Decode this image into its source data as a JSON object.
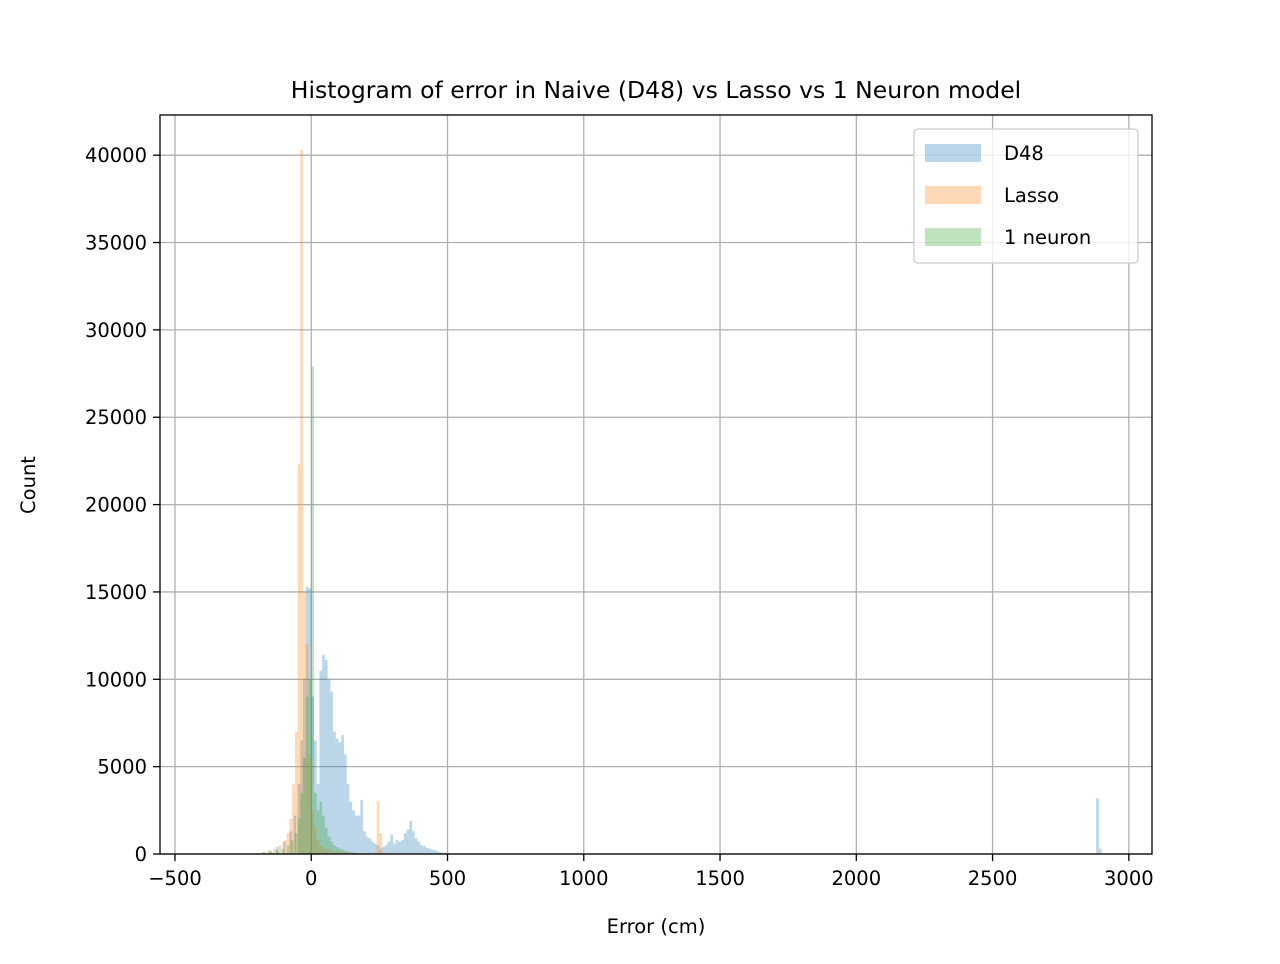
{
  "chart_data": {
    "type": "histogram",
    "title": "Histogram of error in Naive (D48) vs Lasso vs 1 Neuron model",
    "xlabel": "Error (cm)",
    "ylabel": "Count",
    "xlim": [
      -555,
      3085
    ],
    "ylim": [
      0,
      42300
    ],
    "x_ticks": [
      -500,
      0,
      500,
      1000,
      1500,
      2000,
      2500,
      3000
    ],
    "x_tick_labels": [
      "−500",
      "0",
      "500",
      "1000",
      "1500",
      "2000",
      "2500",
      "3000"
    ],
    "y_ticks": [
      0,
      5000,
      10000,
      15000,
      20000,
      25000,
      30000,
      35000,
      40000
    ],
    "y_tick_labels": [
      "0",
      "5000",
      "10000",
      "15000",
      "20000",
      "25000",
      "30000",
      "35000",
      "40000"
    ],
    "grid": true,
    "legend_position": "top-right",
    "series": [
      {
        "name": "D48",
        "color": "#1f77b4",
        "alpha": 0.3,
        "bins": [
          [
            -175,
            100
          ],
          [
            -150,
            200
          ],
          [
            -125,
            400
          ],
          [
            -100,
            700
          ],
          [
            -75,
            1300
          ],
          [
            -60,
            2200
          ],
          [
            -45,
            4000
          ],
          [
            -35,
            6500
          ],
          [
            -25,
            10000
          ],
          [
            -15,
            15300
          ],
          [
            -5,
            15200
          ],
          [
            5,
            9000
          ],
          [
            15,
            6500
          ],
          [
            25,
            4000
          ],
          [
            35,
            10500
          ],
          [
            45,
            11400
          ],
          [
            55,
            11100
          ],
          [
            65,
            10000
          ],
          [
            75,
            9300
          ],
          [
            85,
            7000
          ],
          [
            95,
            6600
          ],
          [
            105,
            6400
          ],
          [
            115,
            6800
          ],
          [
            125,
            5700
          ],
          [
            135,
            4000
          ],
          [
            145,
            3000
          ],
          [
            155,
            2500
          ],
          [
            165,
            2200
          ],
          [
            175,
            2200
          ],
          [
            185,
            3100
          ],
          [
            195,
            1300
          ],
          [
            205,
            1000
          ],
          [
            215,
            900
          ],
          [
            225,
            700
          ],
          [
            235,
            600
          ],
          [
            245,
            500
          ],
          [
            255,
            300
          ],
          [
            265,
            400
          ],
          [
            275,
            500
          ],
          [
            285,
            700
          ],
          [
            295,
            1100
          ],
          [
            305,
            600
          ],
          [
            315,
            800
          ],
          [
            325,
            700
          ],
          [
            335,
            800
          ],
          [
            345,
            1200
          ],
          [
            355,
            1400
          ],
          [
            365,
            1900
          ],
          [
            375,
            1300
          ],
          [
            385,
            900
          ],
          [
            395,
            700
          ],
          [
            405,
            500
          ],
          [
            415,
            450
          ],
          [
            425,
            350
          ],
          [
            435,
            300
          ],
          [
            445,
            250
          ],
          [
            455,
            200
          ],
          [
            465,
            150
          ],
          [
            475,
            100
          ],
          [
            485,
            80
          ],
          [
            495,
            60
          ],
          [
            505,
            40
          ],
          [
            525,
            20
          ],
          [
            560,
            10
          ],
          [
            2885,
            3200
          ],
          [
            2895,
            300
          ]
        ]
      },
      {
        "name": "Lasso",
        "color": "#ff7f0e",
        "alpha": 0.3,
        "bins": [
          [
            -195,
            50
          ],
          [
            -175,
            100
          ],
          [
            -155,
            200
          ],
          [
            -135,
            300
          ],
          [
            -115,
            500
          ],
          [
            -95,
            800
          ],
          [
            -85,
            1200
          ],
          [
            -75,
            2000
          ],
          [
            -65,
            4000
          ],
          [
            -55,
            7000
          ],
          [
            -45,
            22300
          ],
          [
            -35,
            40300
          ],
          [
            -25,
            15000
          ],
          [
            -15,
            12000
          ],
          [
            -5,
            5500
          ],
          [
            5,
            2500
          ],
          [
            15,
            1500
          ],
          [
            25,
            800
          ],
          [
            35,
            500
          ],
          [
            45,
            400
          ],
          [
            55,
            300
          ],
          [
            65,
            250
          ],
          [
            75,
            200
          ],
          [
            85,
            150
          ],
          [
            95,
            150
          ],
          [
            105,
            100
          ],
          [
            115,
            100
          ],
          [
            125,
            100
          ],
          [
            135,
            100
          ],
          [
            145,
            80
          ],
          [
            155,
            80
          ],
          [
            165,
            60
          ],
          [
            175,
            60
          ],
          [
            185,
            60
          ],
          [
            195,
            50
          ],
          [
            205,
            50
          ],
          [
            215,
            50
          ],
          [
            225,
            50
          ],
          [
            235,
            100
          ],
          [
            245,
            3000
          ],
          [
            255,
            1200
          ],
          [
            265,
            100
          ],
          [
            275,
            50
          ],
          [
            285,
            30
          ],
          [
            295,
            20
          ]
        ]
      },
      {
        "name": "1 neuron",
        "color": "#2ca02c",
        "alpha": 0.3,
        "bins": [
          [
            -165,
            50
          ],
          [
            -145,
            100
          ],
          [
            -125,
            200
          ],
          [
            -105,
            300
          ],
          [
            -85,
            500
          ],
          [
            -70,
            800
          ],
          [
            -55,
            1200
          ],
          [
            -45,
            2000
          ],
          [
            -35,
            3500
          ],
          [
            -25,
            5500
          ],
          [
            -15,
            9000
          ],
          [
            -5,
            10000
          ],
          [
            5,
            27900
          ],
          [
            15,
            3500
          ],
          [
            25,
            2500
          ],
          [
            35,
            3000
          ],
          [
            45,
            2200
          ],
          [
            55,
            1500
          ],
          [
            65,
            1000
          ],
          [
            75,
            700
          ],
          [
            85,
            500
          ],
          [
            95,
            400
          ],
          [
            105,
            300
          ],
          [
            115,
            250
          ],
          [
            125,
            200
          ],
          [
            135,
            150
          ],
          [
            145,
            100
          ],
          [
            155,
            80
          ],
          [
            165,
            60
          ],
          [
            175,
            40
          ],
          [
            185,
            30
          ],
          [
            195,
            20
          ]
        ]
      }
    ]
  }
}
